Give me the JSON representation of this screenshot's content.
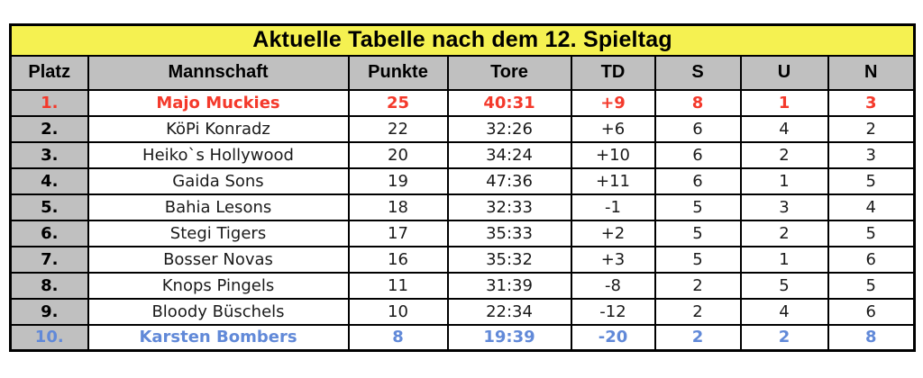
{
  "table": {
    "title": "Aktuelle Tabelle nach dem 12. Spieltag",
    "colors": {
      "title_bg": "#f5f151",
      "header_bg": "#c0c0c0",
      "border": "#000000",
      "leader_text": "#f4392b",
      "last_text": "#6189d8"
    },
    "columns": [
      "Platz",
      "Mannschaft",
      "Punkte",
      "Tore",
      "TD",
      "S",
      "U",
      "N"
    ],
    "rows": [
      {
        "platz": "1.",
        "mannschaft": "Majo Muckies",
        "punkte": "25",
        "tore": "40:31",
        "td": "+9",
        "s": "8",
        "u": "1",
        "n": "3",
        "style": "leader"
      },
      {
        "platz": "2.",
        "mannschaft": "KöPi Konradz",
        "punkte": "22",
        "tore": "32:26",
        "td": "+6",
        "s": "6",
        "u": "4",
        "n": "2",
        "style": "normal"
      },
      {
        "platz": "3.",
        "mannschaft": "Heiko`s Hollywood",
        "punkte": "20",
        "tore": "34:24",
        "td": "+10",
        "s": "6",
        "u": "2",
        "n": "3",
        "style": "normal"
      },
      {
        "platz": "4.",
        "mannschaft": "Gaida Sons",
        "punkte": "19",
        "tore": "47:36",
        "td": "+11",
        "s": "6",
        "u": "1",
        "n": "5",
        "style": "normal"
      },
      {
        "platz": "5.",
        "mannschaft": "Bahia Lesons",
        "punkte": "18",
        "tore": "32:33",
        "td": "-1",
        "s": "5",
        "u": "3",
        "n": "4",
        "style": "normal"
      },
      {
        "platz": "6.",
        "mannschaft": "Stegi Tigers",
        "punkte": "17",
        "tore": "35:33",
        "td": "+2",
        "s": "5",
        "u": "2",
        "n": "5",
        "style": "normal"
      },
      {
        "platz": "7.",
        "mannschaft": "Bosser Novas",
        "punkte": "16",
        "tore": "35:32",
        "td": "+3",
        "s": "5",
        "u": "1",
        "n": "6",
        "style": "normal"
      },
      {
        "platz": "8.",
        "mannschaft": "Knops Pingels",
        "punkte": "11",
        "tore": "31:39",
        "td": "-8",
        "s": "2",
        "u": "5",
        "n": "5",
        "style": "normal"
      },
      {
        "platz": "9.",
        "mannschaft": "Bloody Büschels",
        "punkte": "10",
        "tore": "22:34",
        "td": "-12",
        "s": "2",
        "u": "4",
        "n": "6",
        "style": "normal"
      },
      {
        "platz": "10.",
        "mannschaft": "Karsten Bombers",
        "punkte": "8",
        "tore": "19:39",
        "td": "-20",
        "s": "2",
        "u": "2",
        "n": "8",
        "style": "last"
      }
    ]
  }
}
